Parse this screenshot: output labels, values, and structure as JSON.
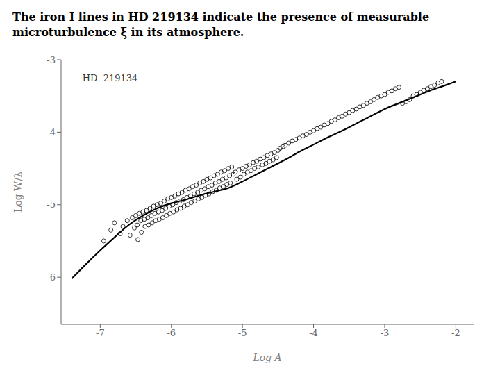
{
  "chart_data": {
    "type": "scatter",
    "title": "The iron I lines in HD 219134 indicate the presence of measurable\nmicroturbulence ξ in its atmosphere.",
    "x_label": "Log A",
    "y_label": "Log W/λ",
    "xlim": [
      -7.55,
      -1.75
    ],
    "ylim": [
      -6.65,
      -3.0
    ],
    "xticks": [
      -7,
      -6,
      -5,
      -4,
      -3,
      -2
    ],
    "yticks": [
      -6,
      -5,
      -4,
      -3
    ],
    "grid": false,
    "annotations": [
      {
        "text": "HD  219134",
        "x": -7.25,
        "y": -3.3
      }
    ],
    "series": [
      {
        "type": "scatter",
        "color": "black",
        "marker": "o",
        "x": [
          -6.95,
          -6.85,
          -6.8,
          -6.72,
          -6.68,
          -6.62,
          -6.58,
          -6.55,
          -6.52,
          -6.5,
          -6.48,
          -6.47,
          -6.45,
          -6.43,
          -6.42,
          -6.4,
          -6.38,
          -6.37,
          -6.35,
          -6.33,
          -6.32,
          -6.3,
          -6.28,
          -6.27,
          -6.25,
          -6.23,
          -6.22,
          -6.2,
          -6.18,
          -6.17,
          -6.15,
          -6.13,
          -6.12,
          -6.1,
          -6.08,
          -6.07,
          -6.05,
          -6.03,
          -6.02,
          -6.0,
          -5.98,
          -5.97,
          -5.95,
          -5.93,
          -5.92,
          -5.9,
          -5.88,
          -5.87,
          -5.85,
          -5.83,
          -5.82,
          -5.8,
          -5.78,
          -5.77,
          -5.75,
          -5.73,
          -5.72,
          -5.7,
          -5.68,
          -5.67,
          -5.65,
          -5.63,
          -5.62,
          -5.6,
          -5.58,
          -5.57,
          -5.55,
          -5.53,
          -5.52,
          -5.5,
          -5.48,
          -5.47,
          -5.45,
          -5.43,
          -5.42,
          -5.4,
          -5.38,
          -5.37,
          -5.35,
          -5.33,
          -5.32,
          -5.3,
          -5.28,
          -5.27,
          -5.25,
          -5.23,
          -5.22,
          -5.2,
          -5.18,
          -5.17,
          -5.15,
          -5.13,
          -5.1,
          -5.08,
          -5.05,
          -5.03,
          -5.0,
          -4.98,
          -4.95,
          -4.93,
          -4.9,
          -4.88,
          -4.85,
          -4.83,
          -4.8,
          -4.78,
          -4.75,
          -4.72,
          -4.7,
          -4.67,
          -4.65,
          -4.62,
          -4.6,
          -4.57,
          -4.55,
          -4.52,
          -4.5,
          -4.47,
          -4.43,
          -4.4,
          -4.35,
          -4.3,
          -4.25,
          -4.2,
          -4.15,
          -4.1,
          -4.05,
          -4.0,
          -3.95,
          -3.9,
          -3.85,
          -3.8,
          -3.75,
          -3.7,
          -3.65,
          -3.6,
          -3.55,
          -3.5,
          -3.45,
          -3.4,
          -3.35,
          -3.3,
          -3.25,
          -3.2,
          -3.15,
          -3.1,
          -3.05,
          -3.0,
          -2.95,
          -2.9,
          -2.85,
          -2.8,
          -2.75,
          -2.7,
          -2.65,
          -2.6,
          -2.55,
          -2.5,
          -2.45,
          -2.4,
          -2.35,
          -2.3,
          -2.25,
          -2.2
        ],
        "y": [
          -5.5,
          -5.35,
          -5.25,
          -5.4,
          -5.3,
          -5.22,
          -5.42,
          -5.18,
          -5.32,
          -5.15,
          -5.28,
          -5.48,
          -5.12,
          -5.22,
          -5.38,
          -5.1,
          -5.2,
          -5.3,
          -5.08,
          -5.18,
          -5.28,
          -5.05,
          -5.15,
          -5.25,
          -5.02,
          -5.12,
          -5.22,
          -5.0,
          -5.1,
          -5.2,
          -4.98,
          -5.08,
          -5.18,
          -4.95,
          -5.05,
          -5.15,
          -4.92,
          -5.02,
          -5.12,
          -4.9,
          -5.0,
          -5.1,
          -4.88,
          -4.97,
          -5.07,
          -4.85,
          -4.95,
          -5.05,
          -4.83,
          -4.93,
          -5.02,
          -4.8,
          -4.9,
          -5.0,
          -4.78,
          -4.88,
          -4.97,
          -4.75,
          -4.85,
          -4.95,
          -4.73,
          -4.83,
          -4.92,
          -4.7,
          -4.8,
          -4.9,
          -4.68,
          -4.78,
          -4.87,
          -4.65,
          -4.75,
          -4.85,
          -4.63,
          -4.73,
          -4.82,
          -4.6,
          -4.7,
          -4.8,
          -4.58,
          -4.68,
          -4.77,
          -4.55,
          -4.65,
          -4.75,
          -4.53,
          -4.63,
          -4.72,
          -4.5,
          -4.6,
          -4.7,
          -4.48,
          -4.58,
          -4.55,
          -4.65,
          -4.52,
          -4.62,
          -4.5,
          -4.58,
          -4.47,
          -4.55,
          -4.45,
          -4.53,
          -4.42,
          -4.5,
          -4.4,
          -4.48,
          -4.37,
          -4.45,
          -4.35,
          -4.43,
          -4.32,
          -4.4,
          -4.3,
          -4.38,
          -4.28,
          -4.35,
          -4.25,
          -4.22,
          -4.2,
          -4.18,
          -4.15,
          -4.12,
          -4.1,
          -4.08,
          -4.05,
          -4.03,
          -4.0,
          -3.98,
          -3.95,
          -3.93,
          -3.9,
          -3.88,
          -3.85,
          -3.83,
          -3.8,
          -3.78,
          -3.75,
          -3.73,
          -3.7,
          -3.68,
          -3.65,
          -3.63,
          -3.6,
          -3.58,
          -3.55,
          -3.52,
          -3.5,
          -3.48,
          -3.45,
          -3.43,
          -3.4,
          -3.38,
          -3.6,
          -3.58,
          -3.55,
          -3.5,
          -3.48,
          -3.45,
          -3.42,
          -3.4,
          -3.37,
          -3.35,
          -3.32,
          -3.3
        ]
      },
      {
        "type": "line",
        "color": "black",
        "x": [
          -7.4,
          -7.2,
          -7.0,
          -6.8,
          -6.6,
          -6.4,
          -6.2,
          -6.0,
          -5.8,
          -5.6,
          -5.4,
          -5.2,
          -5.0,
          -4.8,
          -4.6,
          -4.4,
          -4.2,
          -4.0,
          -3.8,
          -3.6,
          -3.4,
          -3.2,
          -3.0,
          -2.8,
          -2.6,
          -2.4,
          -2.2,
          -2.0
        ],
        "y": [
          -6.02,
          -5.82,
          -5.63,
          -5.45,
          -5.28,
          -5.15,
          -5.05,
          -4.98,
          -4.93,
          -4.87,
          -4.82,
          -4.77,
          -4.68,
          -4.58,
          -4.48,
          -4.38,
          -4.27,
          -4.17,
          -4.07,
          -3.98,
          -3.88,
          -3.78,
          -3.68,
          -3.6,
          -3.52,
          -3.44,
          -3.37,
          -3.3
        ]
      }
    ]
  }
}
